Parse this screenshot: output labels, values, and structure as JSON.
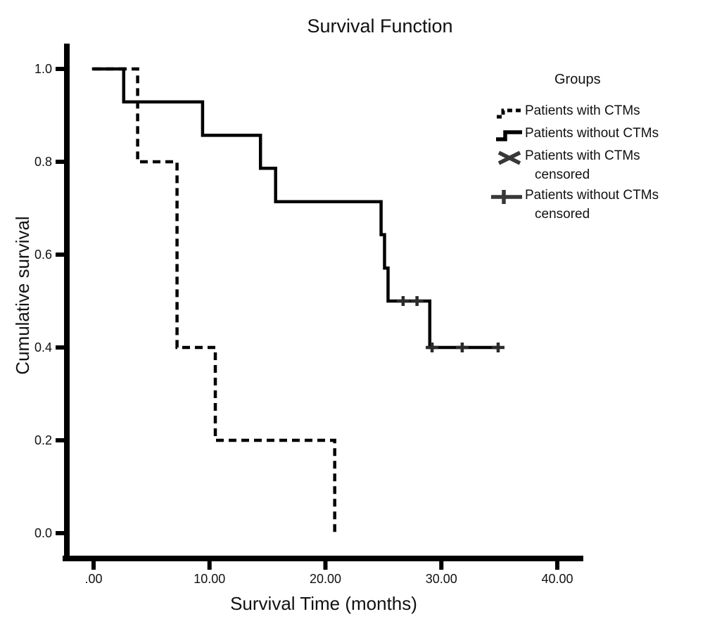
{
  "title": "Survival Function",
  "axes": {
    "x_label": "Survival Time (months)",
    "y_label": "Cumulative survival",
    "x_ticks": [
      ".00",
      "10.00",
      "20.00",
      "30.00",
      "40.00"
    ],
    "x_tick_values": [
      0,
      10,
      20,
      30,
      40
    ],
    "y_ticks": [
      "0.0",
      "0.2",
      "0.4",
      "0.6",
      "0.8",
      "1.0"
    ],
    "y_tick_values": [
      0.0,
      0.2,
      0.4,
      0.6,
      0.8,
      1.0
    ]
  },
  "legend": {
    "title": "Groups",
    "entries": [
      {
        "marker": "dashed-step-icon",
        "label": "Patients with CTMs",
        "label2": ""
      },
      {
        "marker": "solid-step-icon",
        "label": "Patients without CTMs",
        "label2": ""
      },
      {
        "marker": "x-censored-icon",
        "label": "Patients with CTMs",
        "label2": "censored"
      },
      {
        "marker": "plus-censored-icon",
        "label": "Patients without CTMs",
        "label2": "censored"
      }
    ]
  },
  "colors": {
    "curve": "#000000",
    "censor_marker": "#2b2b2b",
    "legend_marker_gray": "#383838",
    "axis": "#000000",
    "background": "#ffffff"
  },
  "chart_data": {
    "type": "line",
    "subtype": "kaplan-meier-step",
    "title": "Survival Function",
    "xlabel": "Survival Time (months)",
    "ylabel": "Cumulative survival",
    "xlim": [
      0,
      42
    ],
    "ylim": [
      0.0,
      1.0
    ],
    "grid": false,
    "legend_position": "upper-right",
    "series": [
      {
        "name": "Patients with CTMs",
        "style": "dashed",
        "points": [
          [
            0,
            1.0
          ],
          [
            3.8,
            1.0
          ],
          [
            3.8,
            0.8
          ],
          [
            7.2,
            0.8
          ],
          [
            7.2,
            0.4
          ],
          [
            10.5,
            0.4
          ],
          [
            10.5,
            0.2
          ],
          [
            20.8,
            0.2
          ],
          [
            20.8,
            0.0
          ]
        ],
        "censored": []
      },
      {
        "name": "Patients without CTMs",
        "style": "solid",
        "points": [
          [
            0,
            1.0
          ],
          [
            2.6,
            1.0
          ],
          [
            2.6,
            0.929
          ],
          [
            9.4,
            0.929
          ],
          [
            9.4,
            0.857
          ],
          [
            14.4,
            0.857
          ],
          [
            14.4,
            0.786
          ],
          [
            15.7,
            0.786
          ],
          [
            15.7,
            0.714
          ],
          [
            24.8,
            0.714
          ],
          [
            24.8,
            0.643
          ],
          [
            25.1,
            0.643
          ],
          [
            25.1,
            0.571
          ],
          [
            25.4,
            0.571
          ],
          [
            25.4,
            0.5
          ],
          [
            29.0,
            0.5
          ],
          [
            29.0,
            0.4
          ],
          [
            34.9,
            0.4
          ]
        ],
        "censored": [
          [
            26.7,
            0.5
          ],
          [
            27.9,
            0.5
          ],
          [
            29.2,
            0.4
          ],
          [
            31.8,
            0.4
          ],
          [
            34.9,
            0.4
          ]
        ]
      }
    ]
  }
}
